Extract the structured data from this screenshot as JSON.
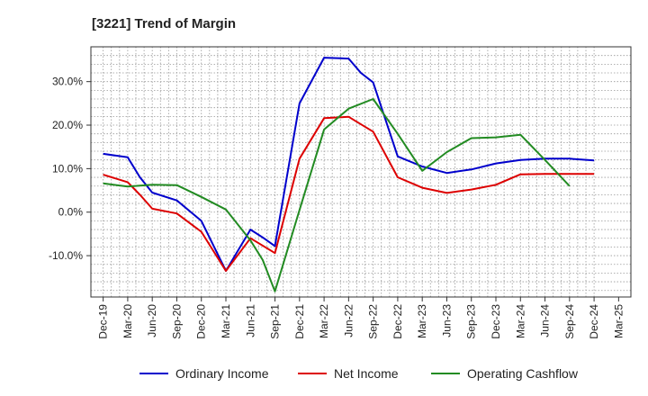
{
  "chart_data": {
    "type": "line",
    "title": "[3221]  Trend of Margin",
    "xlabel": "",
    "ylabel": "",
    "categories": [
      "Dec-19",
      "Mar-20",
      "Jun-20",
      "Sep-20",
      "Dec-20",
      "Mar-21",
      "Jun-21",
      "Sep-21",
      "Dec-21",
      "Mar-22",
      "Jun-22",
      "Sep-22",
      "Dec-22",
      "Mar-23",
      "Jun-23",
      "Sep-23",
      "Dec-23",
      "Mar-24",
      "Jun-24",
      "Sep-24",
      "Dec-24",
      "Mar-25"
    ],
    "x_quarter_index": [
      0,
      0.333,
      0.667,
      1,
      1.333,
      1.667,
      2,
      2.333,
      2.667,
      3,
      3.333,
      3.667,
      4,
      4.333,
      4.667,
      5,
      5.333,
      5.667,
      6,
      6.333,
      6.667,
      7,
      7.333,
      7.667,
      8,
      8.333,
      8.667,
      9,
      9.333,
      9.667,
      10,
      10.333,
      10.667,
      11,
      11.333,
      11.667,
      12,
      12.333,
      12.667,
      13,
      13.333,
      13.667,
      14,
      14.333,
      14.667,
      15,
      15.333,
      15.667,
      16,
      16.333,
      16.667,
      17,
      17.333,
      17.667,
      18,
      18.333,
      18.667,
      19,
      19.333,
      19.667,
      20
    ],
    "ylim": [
      -19.5,
      38
    ],
    "yticks": [
      -10,
      0,
      10,
      20,
      30
    ],
    "ytick_labels": [
      "-10.0%",
      "0.0%",
      "10.0%",
      "20.0%",
      "30.0%"
    ],
    "grid": true,
    "legend_position": "bottom",
    "series": [
      {
        "name": "Ordinary Income",
        "color": "#0000cc",
        "points": [
          [
            0,
            13.4
          ],
          [
            1,
            12.6
          ],
          [
            1.5,
            8.0
          ],
          [
            2,
            4.5
          ],
          [
            3,
            2.7
          ],
          [
            4,
            -2.0
          ],
          [
            5,
            -13.5
          ],
          [
            6,
            -4.0
          ],
          [
            6.5,
            -5.8
          ],
          [
            7,
            -7.8
          ],
          [
            8,
            25.0
          ],
          [
            9,
            35.5
          ],
          [
            10,
            35.3
          ],
          [
            10.5,
            32.0
          ],
          [
            11,
            29.8
          ],
          [
            12,
            12.8
          ],
          [
            13,
            10.5
          ],
          [
            14,
            9.0
          ],
          [
            15,
            9.8
          ],
          [
            16,
            11.2
          ],
          [
            17,
            12.0
          ],
          [
            18,
            12.3
          ],
          [
            19,
            12.3
          ],
          [
            20,
            11.9
          ]
        ]
      },
      {
        "name": "Net Income",
        "color": "#dd0000",
        "points": [
          [
            0,
            8.6
          ],
          [
            1,
            6.9
          ],
          [
            1.5,
            4.0
          ],
          [
            2,
            0.8
          ],
          [
            3,
            -0.3
          ],
          [
            4,
            -4.5
          ],
          [
            5,
            -13.5
          ],
          [
            6,
            -6.0
          ],
          [
            7,
            -9.4
          ],
          [
            8,
            12.3
          ],
          [
            9,
            21.6
          ],
          [
            10,
            21.9
          ],
          [
            11,
            18.5
          ],
          [
            12,
            8.0
          ],
          [
            13,
            5.6
          ],
          [
            14,
            4.4
          ],
          [
            15,
            5.2
          ],
          [
            16,
            6.3
          ],
          [
            17,
            8.7
          ],
          [
            18,
            8.8
          ],
          [
            19,
            8.8
          ],
          [
            20,
            8.8
          ]
        ]
      },
      {
        "name": "Operating Cashflow",
        "color": "#228b22",
        "points": [
          [
            0,
            6.6
          ],
          [
            1,
            5.9
          ],
          [
            2,
            6.3
          ],
          [
            3,
            6.2
          ],
          [
            4,
            3.5
          ],
          [
            5,
            0.6
          ],
          [
            6,
            -6.5
          ],
          [
            6.5,
            -11.0
          ],
          [
            7,
            -18.2
          ],
          [
            8,
            0.5
          ],
          [
            9,
            19.0
          ],
          [
            10,
            23.8
          ],
          [
            11,
            26.0
          ],
          [
            12,
            18.0
          ],
          [
            13,
            9.5
          ],
          [
            14,
            13.8
          ],
          [
            15,
            17.0
          ],
          [
            16,
            17.2
          ],
          [
            17,
            17.8
          ],
          [
            18,
            12.0
          ],
          [
            19,
            6.0
          ]
        ]
      }
    ]
  }
}
